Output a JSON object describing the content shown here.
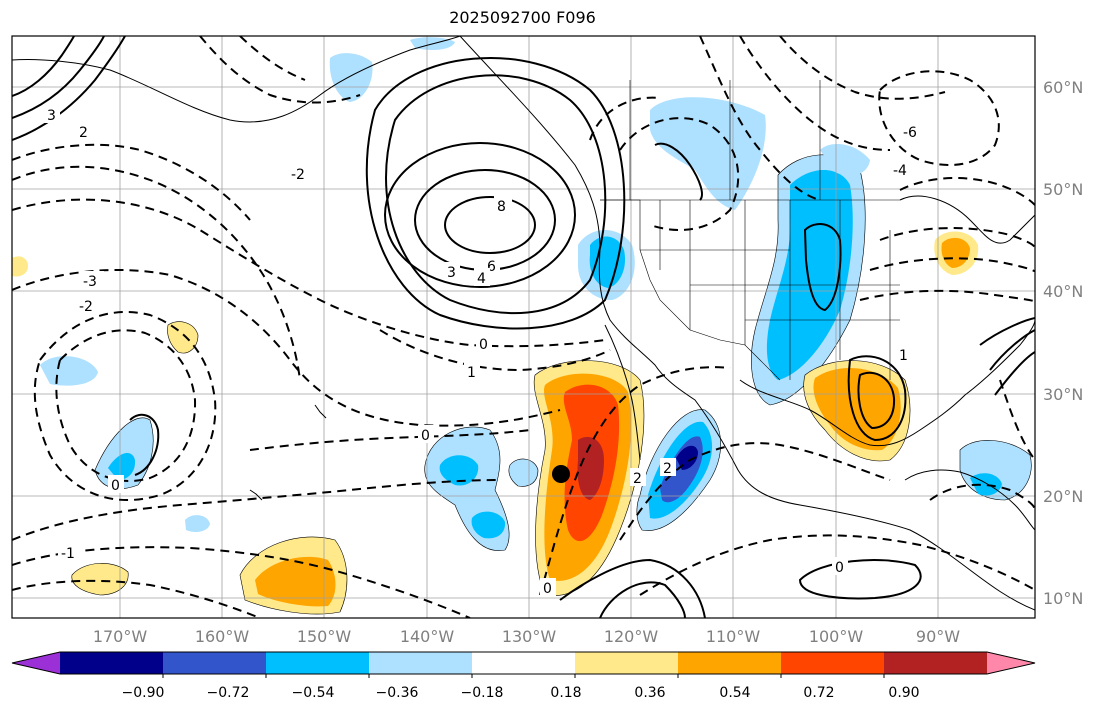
{
  "title": "2025092700 F096",
  "map": {
    "lat_labels": [
      "60°N",
      "50°N",
      "40°N",
      "30°N",
      "20°N",
      "10°N"
    ],
    "lon_labels": [
      "170°W",
      "160°W",
      "150°W",
      "140°W",
      "130°W",
      "120°W",
      "110°W",
      "100°W",
      "90°W"
    ],
    "contour_labels": [
      "8",
      "6",
      "4",
      "3",
      "2",
      "1",
      "0",
      "-1",
      "-2",
      "-3",
      "-4",
      "-6"
    ],
    "marker": "black-dot"
  },
  "colorbar": {
    "tick_labels": [
      "−0.90",
      "−0.72",
      "−0.54",
      "−0.36",
      "−0.18",
      "0.18",
      "0.36",
      "0.54",
      "0.72",
      "0.90"
    ],
    "colors": [
      "#9b30d6",
      "#00008b",
      "#3355cc",
      "#00bfff",
      "#aee0ff",
      "#ffffff",
      "#ffe98a",
      "#ffa500",
      "#ff4500",
      "#b22222",
      "#ff88aa"
    ]
  }
}
